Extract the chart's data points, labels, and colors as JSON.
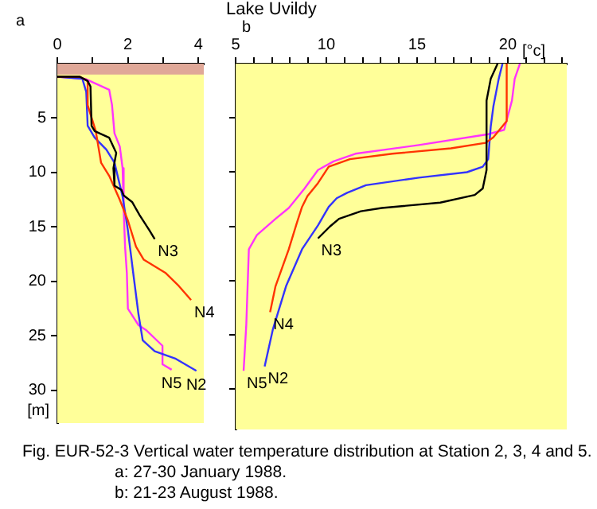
{
  "chart_data": [
    {
      "type": "line",
      "subtitle": "a",
      "ylabel": "[m]",
      "xlim": [
        0,
        4.15
      ],
      "xticks": [
        0,
        {
          "value": 1,
          "label": null
        },
        2,
        {
          "value": 3,
          "label": null
        },
        4
      ],
      "ylim": [
        33,
        0
      ],
      "yticks": [
        5,
        10,
        15,
        20,
        25,
        30
      ],
      "bands": [
        {
          "axis": "y",
          "from": 0,
          "to": 1,
          "color": "#e0a898"
        }
      ],
      "series": [
        {
          "name": "N3",
          "color": "#000000",
          "x": [
            0,
            0.64,
            0.86,
            0.94,
            0.97,
            1.06,
            1.47,
            1.67,
            1.59,
            1.62,
            1.82,
            1.88,
            2.12,
            2.33,
            2.61,
            2.76
          ],
          "values": [
            1.2,
            1.2,
            1.6,
            2.1,
            5.7,
            6.2,
            6.8,
            8.2,
            9.6,
            11.2,
            11.6,
            12.1,
            12.7,
            13.9,
            15.3,
            16.1
          ]
        },
        {
          "name": "N4",
          "color": "#ff3300",
          "x": [
            0,
            0.64,
            0.86,
            0.86,
            1.09,
            1.24,
            1.47,
            1.77,
            2.0,
            2.23,
            2.45,
            3.06,
            3.44,
            3.79
          ],
          "values": [
            1.2,
            1.2,
            1.6,
            3.8,
            6.2,
            9.1,
            10.3,
            12.5,
            14.4,
            16.8,
            18.0,
            19.2,
            20.4,
            21.7
          ]
        },
        {
          "name": "N2",
          "color": "#3333ff",
          "x": [
            0,
            0.71,
            0.82,
            0.86,
            1.06,
            1.39,
            1.62,
            1.85,
            2.0,
            2.15,
            2.3,
            2.42,
            2.76,
            3.36,
            3.94
          ],
          "values": [
            1.2,
            1.4,
            2.6,
            5.7,
            6.8,
            7.9,
            9.1,
            12.2,
            15.3,
            19.2,
            23.0,
            25.4,
            26.4,
            27.1,
            28.2
          ]
        },
        {
          "name": "N5",
          "color": "#ff33ff",
          "x": [
            0,
            0.79,
            1.47,
            1.55,
            1.62,
            1.77,
            1.85,
            1.88,
            1.92,
            1.97,
            2.0,
            2.3,
            2.53,
            2.98,
            2.98,
            3.24
          ],
          "values": [
            1.2,
            1.4,
            2.4,
            3.8,
            6.4,
            7.6,
            9.6,
            13.4,
            16.8,
            19.2,
            22.5,
            24.0,
            24.5,
            25.9,
            27.6,
            28.1
          ]
        }
      ],
      "annotations": [
        "Fig. EUR-52-3 Vertical water temperature distribution at Station 2, 3, 4 and 5.",
        "a: 27-30 January 1988.",
        "b: 21-23 August 1988."
      ]
    },
    {
      "type": "line",
      "title": "Lake Uvildy",
      "subtitle": "b",
      "xlabel": "[°c]",
      "xlim": [
        5,
        23.25
      ],
      "xticks": [
        5,
        {
          "value": 6,
          "label": null
        },
        {
          "value": 7,
          "label": null
        },
        {
          "value": 8,
          "label": null
        },
        {
          "value": 9,
          "label": null
        },
        10,
        {
          "value": 11,
          "label": null
        },
        {
          "value": 12,
          "label": null
        },
        {
          "value": 13,
          "label": null
        },
        {
          "value": 14,
          "label": null
        },
        15,
        {
          "value": 16,
          "label": null
        },
        {
          "value": 17,
          "label": null
        },
        {
          "value": 18,
          "label": null
        },
        {
          "value": 19,
          "label": null
        },
        20,
        {
          "value": 21,
          "label": null
        },
        {
          "value": 22,
          "label": null
        },
        {
          "value": 23,
          "label": null
        }
      ],
      "ylim": [
        33.7,
        0
      ],
      "yticks": [
        5,
        10,
        15,
        20,
        25,
        30
      ],
      "tick_labels": "x",
      "series": [
        {
          "name": "N3",
          "color": "#000000",
          "x": [
            19.44,
            19.06,
            18.83,
            18.83,
            18.62,
            18.18,
            16.28,
            13.06,
            11.9,
            10.7,
            10.2,
            9.54
          ],
          "values": [
            0,
            1.4,
            3.4,
            9.8,
            11.5,
            12.1,
            12.8,
            13.3,
            13.6,
            14.3,
            15.0,
            16.1
          ]
        },
        {
          "name": "N4",
          "color": "#ff3300",
          "x": [
            19.94,
            19.94,
            19.2,
            18.77,
            16.87,
            13.64,
            11.3,
            10.13,
            9.54,
            8.96,
            8.66,
            8.37,
            7.93,
            7.2,
            6.9
          ],
          "values": [
            0,
            5.3,
            6.8,
            7.3,
            7.8,
            8.3,
            8.8,
            9.5,
            11.0,
            12.2,
            13.2,
            14.7,
            17.1,
            20.5,
            22.9
          ]
        },
        {
          "name": "N2",
          "color": "#3333ff",
          "x": [
            19.71,
            19.5,
            19.21,
            19.06,
            18.92,
            18.62,
            17.75,
            15.1,
            12.18,
            11.15,
            10.57,
            10.13,
            9.54,
            8.66,
            7.78,
            7.05,
            6.6
          ],
          "values": [
            0,
            1.4,
            3.9,
            5.8,
            8.8,
            9.5,
            10.0,
            10.5,
            11.2,
            11.9,
            12.4,
            13.2,
            14.9,
            17.1,
            20.5,
            24.5,
            27.9
          ]
        },
        {
          "name": "N5",
          "color": "#ff33ff",
          "x": [
            20.67,
            20.38,
            20.23,
            19.8,
            18.92,
            15.1,
            11.6,
            10.4,
            9.54,
            8.8,
            7.93,
            7.2,
            6.17,
            5.73,
            5.59,
            5.44
          ],
          "values": [
            0,
            1.4,
            3.4,
            6.1,
            6.5,
            7.5,
            8.3,
            9.0,
            9.8,
            11.5,
            13.3,
            14.3,
            15.8,
            17.1,
            24.0,
            28.3
          ]
        }
      ]
    }
  ]
}
